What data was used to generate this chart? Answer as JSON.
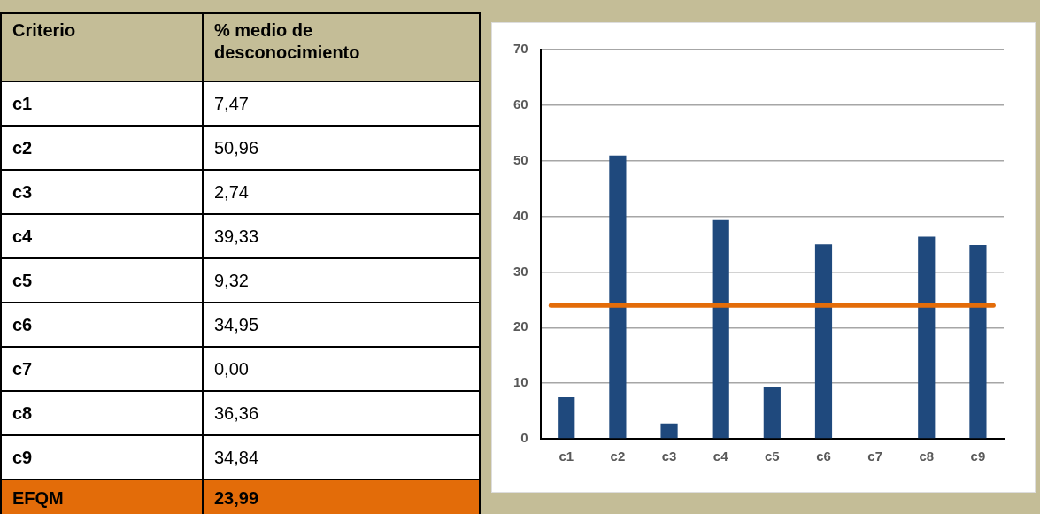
{
  "chart_data": {
    "type": "bar",
    "categories": [
      "c1",
      "c2",
      "c3",
      "c4",
      "c5",
      "c6",
      "c7",
      "c8",
      "c9"
    ],
    "values": [
      7.47,
      50.96,
      2.74,
      39.33,
      9.32,
      34.95,
      0.0,
      36.36,
      34.84
    ],
    "color": "#1f497d",
    "ylim": [
      0,
      70
    ],
    "yticks": [
      0,
      10,
      20,
      30,
      40,
      50,
      60,
      70
    ],
    "grid": "y",
    "ref_lines": [
      {
        "axis": "y",
        "value": 23.99,
        "color": "#e36c09"
      }
    ],
    "annotations": [
      "Criterio",
      "% medio de desconocimiento",
      "c1",
      "7,47",
      "c2",
      "50,96",
      "c3",
      "2,74",
      "c4",
      "39,33",
      "c5",
      "9,32",
      "c6",
      "34,95",
      "c7",
      "0,00",
      "c8",
      "36,36",
      "c9",
      "34,84",
      "EFQM",
      "23,99"
    ]
  }
}
